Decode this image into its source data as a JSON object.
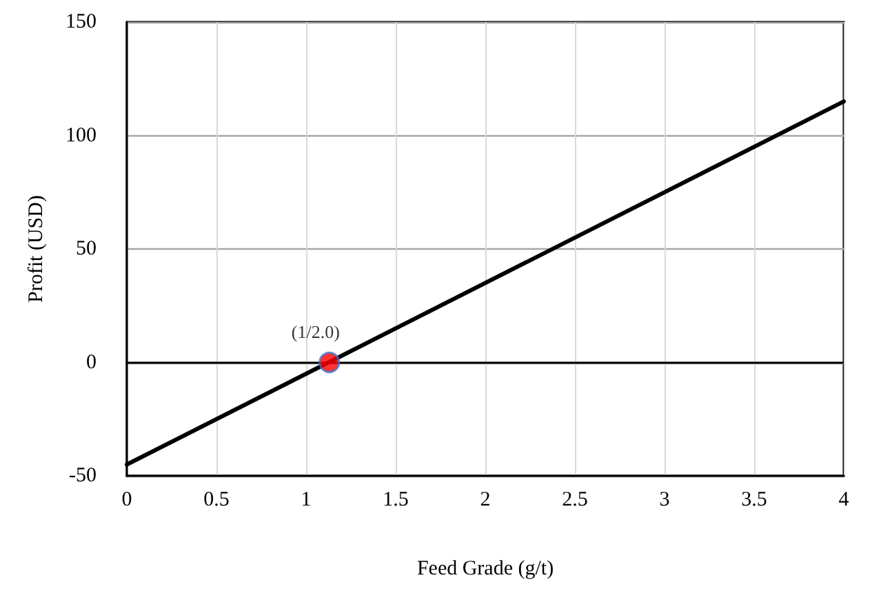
{
  "chart_data": {
    "type": "line",
    "xlabel": "Feed Grade (g/t)",
    "ylabel": "Profit (USD)",
    "xlim": [
      0,
      4
    ],
    "xticks": [
      0,
      0.5,
      1,
      1.5,
      2,
      2.5,
      3,
      3.5,
      4
    ],
    "ylim": [
      -50,
      150
    ],
    "yticks": [
      -50,
      0,
      50,
      100,
      150
    ],
    "grid": true,
    "series": [
      {
        "color": "#000000",
        "x": [
          0,
          4
        ],
        "values": [
          -45,
          115
        ],
        "marker": "none",
        "line_style": "solid"
      },
      {
        "type": "scatter",
        "color": "#ff0000",
        "x": [
          1.13
        ],
        "values": [
          0
        ],
        "marker": "circle"
      }
    ],
    "ref_lines": [
      {
        "axis": "y",
        "value": 0,
        "color": "#000000",
        "line_style": "solid"
      }
    ],
    "annotations": [
      {
        "text": "(1/2.0)",
        "x": 1.13,
        "y": 0
      }
    ]
  }
}
